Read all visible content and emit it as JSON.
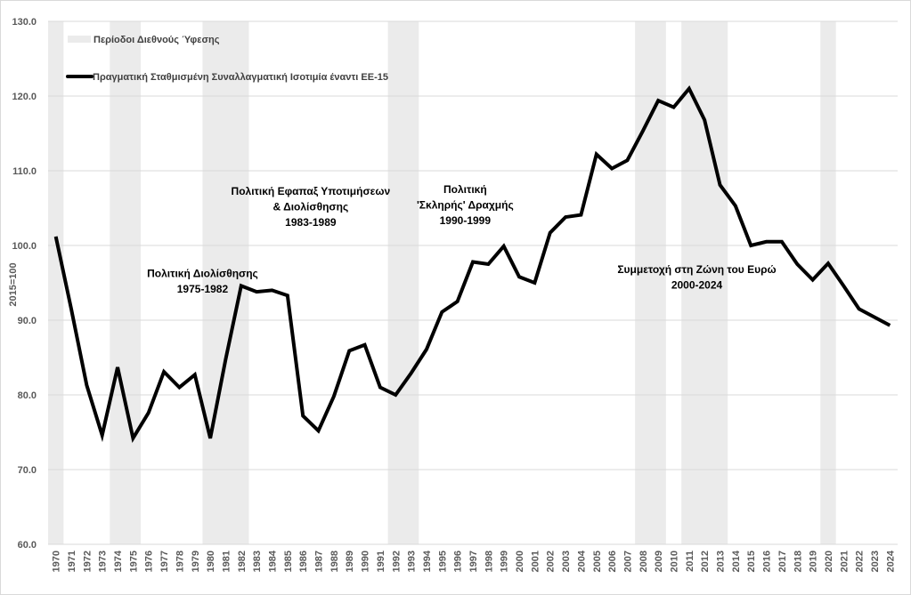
{
  "chart_data": {
    "type": "line",
    "ylabel": "2015=100",
    "ylim": [
      60,
      130
    ],
    "yticks": [
      "60.0",
      "70.0",
      "80.0",
      "90.0",
      "100.0",
      "110.0",
      "120.0",
      "130.0"
    ],
    "grid": true,
    "legend_placement": "top-left",
    "legend": {
      "shaded": "Περίοδοι Διεθνούς Ύφεσης",
      "line": "Πραγματική Σταθμισμένη Συναλλαγματική Ισοτιμία έναντι ΕΕ-15"
    },
    "categories": [
      "1970",
      "1971",
      "1972",
      "1973",
      "1974",
      "1975",
      "1976",
      "1977",
      "1978",
      "1979",
      "1980",
      "1981",
      "1982",
      "1983",
      "1984",
      "1985",
      "1986",
      "1987",
      "1988",
      "1989",
      "1990",
      "1991",
      "1992",
      "1993",
      "1994",
      "1995",
      "1996",
      "1997",
      "1998",
      "1999",
      "2000",
      "2001",
      "2002",
      "2003",
      "2004",
      "2005",
      "2006",
      "2007",
      "2008",
      "2009",
      "2010",
      "2011",
      "2012",
      "2013",
      "2014",
      "2015",
      "2016",
      "2017",
      "2018",
      "2019",
      "2020",
      "2021",
      "2022",
      "2023",
      "2024"
    ],
    "series": [
      {
        "name": "Πραγματική Σταθμισμένη Συναλλαγματική Ισοτιμία έναντι ΕΕ-15",
        "color": "#000000",
        "values": [
          101.2,
          91.5,
          81.3,
          74.6,
          83.7,
          74.2,
          77.6,
          83.1,
          81.0,
          82.7,
          74.2,
          84.8,
          94.6,
          93.8,
          94.0,
          93.3,
          77.2,
          75.2,
          79.8,
          85.9,
          86.7,
          81.0,
          80.0,
          82.9,
          86.1,
          91.1,
          92.5,
          97.8,
          97.5,
          99.9,
          95.8,
          95.0,
          101.7,
          103.8,
          104.1,
          112.2,
          110.3,
          111.4,
          115.3,
          119.4,
          118.5,
          121.0,
          116.8,
          108.1,
          105.3,
          100.0,
          100.5,
          100.5,
          97.5,
          95.4,
          97.6,
          94.6,
          91.5,
          90.4,
          89.3
        ]
      }
    ],
    "shaded_periods": [
      [
        "1970",
        "1970"
      ],
      [
        "1974",
        "1975"
      ],
      [
        "1980",
        "1982"
      ],
      [
        "1992",
        "1993"
      ],
      [
        "2008",
        "2009"
      ],
      [
        "2011",
        "2013"
      ],
      [
        "2020",
        "2020"
      ]
    ],
    "shade_color": "#ebebeb",
    "annotations": [
      {
        "lines": [
          "Πολιτική Διολίσθησης",
          "1975-1982"
        ],
        "year": "1979",
        "value": 95.8
      },
      {
        "lines": [
          "Πολιτική Εφαπαξ Υποτιμήσεων",
          "& Διολίσθησης",
          "1983-1989"
        ],
        "year": "1986",
        "value": 106.8
      },
      {
        "lines": [
          "Πολιτική",
          "'Σκληρής' Δραχμής",
          "1990-1999"
        ],
        "year": "1996",
        "value": 107.0
      },
      {
        "lines": [
          "Συμμετοχή στη Ζώνη του Ευρώ",
          "2000-2024"
        ],
        "year": "2011",
        "value": 96.3
      }
    ]
  }
}
